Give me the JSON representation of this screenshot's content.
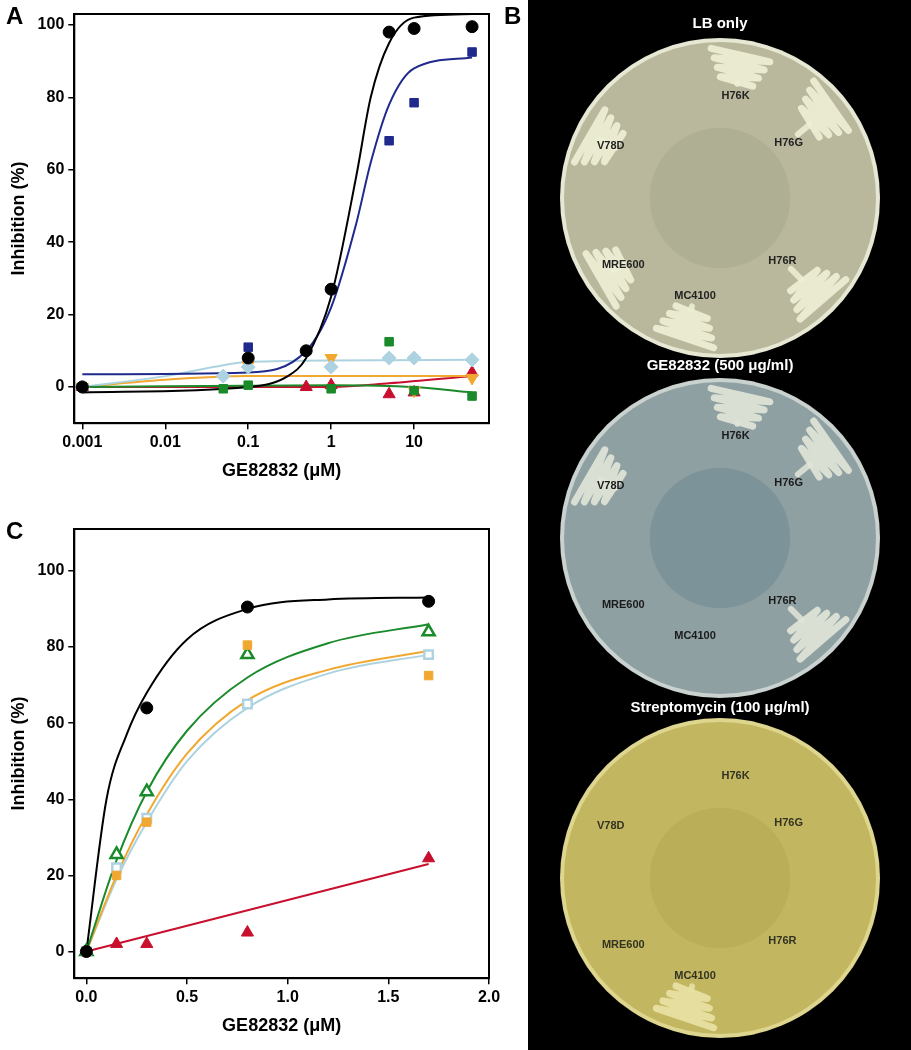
{
  "chart_data": [
    {
      "panel_label": "A",
      "type": "scatter",
      "log": "x",
      "grid": false,
      "x_label": "GE82832 (μM)",
      "y_label": "Inhibition (%)",
      "xlim": [
        0.0008,
        80
      ],
      "xticks": [
        0.001,
        0.01,
        0.1,
        1,
        10
      ],
      "ylim": [
        -10,
        103
      ],
      "yticks": [
        0,
        20,
        40,
        60,
        80,
        100
      ],
      "series": [
        {
          "type": "line",
          "marker": "none",
          "line_style": "solid",
          "color": "#000000",
          "x": [
            0.001,
            0.1,
            0.3,
            0.5,
            1,
            2,
            3,
            5,
            10,
            50
          ],
          "values": [
            -1.5,
            0,
            3,
            8,
            25,
            58,
            80,
            95,
            102,
            103
          ]
        },
        {
          "type": "line",
          "marker": "none",
          "line_style": "solid",
          "color": "#1f2a8c",
          "x": [
            0.001,
            0.1,
            0.5,
            1,
            2,
            3,
            5,
            10,
            50
          ],
          "values": [
            3.5,
            4,
            10,
            22,
            45,
            62,
            78,
            88,
            91
          ]
        },
        {
          "type": "line",
          "marker": "none",
          "line_style": "solid",
          "color": "#1a8a2a",
          "x": [
            0.001,
            1,
            10,
            50
          ],
          "values": [
            0,
            0.5,
            0,
            -1.5
          ]
        },
        {
          "type": "line",
          "marker": "none",
          "line_style": "solid",
          "color": "#aed3e0",
          "x": [
            0.001,
            0.01,
            0.05,
            0.1,
            50
          ],
          "values": [
            0,
            3,
            6,
            7,
            7.5
          ]
        },
        {
          "type": "line",
          "marker": "none",
          "line_style": "solid",
          "color": "#f0a830",
          "x": [
            0.001,
            0.01,
            0.1,
            50
          ],
          "values": [
            0,
            2,
            3,
            3
          ]
        },
        {
          "type": "line",
          "marker": "none",
          "line_style": "solid",
          "color": "#c8102e",
          "x": [
            0.001,
            1,
            5,
            50
          ],
          "values": [
            0,
            0,
            1,
            3
          ]
        },
        {
          "type": "scatter",
          "marker": "circle",
          "color": "#000000",
          "x": [
            0.001,
            0.1,
            0.5,
            1,
            5,
            10,
            50
          ],
          "values": [
            0,
            8,
            10,
            27,
            98,
            99,
            99.5
          ]
        },
        {
          "type": "scatter",
          "marker": "square",
          "color": "#1f2a8c",
          "x": [
            0.001,
            0.1,
            5,
            10,
            50
          ],
          "values": [
            0,
            11,
            68,
            78.5,
            92.5
          ]
        },
        {
          "type": "scatter",
          "marker": "square",
          "color": "#1a8a2a",
          "x": [
            0.001,
            0.05,
            0.1,
            1,
            5,
            10,
            50
          ],
          "values": [
            0,
            -0.5,
            0.5,
            -0.5,
            12.5,
            -1,
            -2.5
          ]
        },
        {
          "type": "scatter",
          "marker": "diamond",
          "color": "#aed3e0",
          "x": [
            0.001,
            0.05,
            0.1,
            1,
            5,
            10,
            50
          ],
          "values": [
            0,
            3,
            5.5,
            5.5,
            8,
            8,
            7.5
          ]
        },
        {
          "type": "scatter",
          "marker": "triangle-down",
          "color": "#f0a830",
          "x": [
            0.001,
            0.1,
            1,
            10,
            50
          ],
          "values": [
            0,
            6,
            8,
            -1,
            2.5
          ]
        },
        {
          "type": "scatter",
          "marker": "triangle",
          "color": "#c8102e",
          "x": [
            0.001,
            0.5,
            1,
            5,
            10,
            50
          ],
          "values": [
            0,
            0,
            0.5,
            -2,
            -1.5,
            4
          ]
        }
      ]
    },
    {
      "panel_label": "C",
      "type": "scatter",
      "grid": false,
      "x_label": "GE82832 (μM)",
      "y_label": "Inhibition (%)",
      "xlim": [
        -0.06,
        2.0
      ],
      "xticks": [
        {
          "value": 0,
          "label": "0.0"
        },
        {
          "value": 0.5,
          "label": "0.5"
        },
        {
          "value": 1,
          "label": "1.0"
        },
        {
          "value": 1.5,
          "label": "1.5"
        },
        {
          "value": 2,
          "label": "2.0"
        }
      ],
      "ylim": [
        -7,
        111
      ],
      "yticks": [
        0,
        20,
        40,
        60,
        80,
        100
      ],
      "series": [
        {
          "type": "line",
          "marker": "none",
          "line_style": "solid",
          "color": "#000000",
          "x": [
            0,
            0.1,
            0.2,
            0.3,
            0.5,
            0.8,
            1.2,
            1.7
          ],
          "values": [
            0,
            40,
            57,
            68,
            82,
            90,
            92.5,
            93
          ]
        },
        {
          "type": "line",
          "marker": "none",
          "line_style": "solid",
          "color": "#1a8a2a",
          "x": [
            0,
            0.15,
            0.3,
            0.5,
            0.8,
            1.2,
            1.7
          ],
          "values": [
            0,
            24,
            42,
            58,
            72,
            81,
            86
          ]
        },
        {
          "type": "line",
          "marker": "none",
          "line_style": "solid",
          "color": "#f0a830",
          "x": [
            0,
            0.15,
            0.3,
            0.5,
            0.8,
            1.2,
            1.7
          ],
          "values": [
            0,
            20,
            36,
            52,
            66,
            74,
            79
          ]
        },
        {
          "type": "line",
          "marker": "none",
          "line_style": "solid",
          "color": "#aed3e0",
          "x": [
            0,
            0.15,
            0.3,
            0.5,
            0.8,
            1.2,
            1.7
          ],
          "values": [
            0,
            19,
            34,
            50,
            64,
            73,
            78
          ]
        },
        {
          "type": "line",
          "marker": "none",
          "line_style": "solid",
          "color": "#c8102e",
          "x": [
            0,
            1.7
          ],
          "values": [
            0,
            23
          ]
        },
        {
          "type": "scatter",
          "marker": "circle",
          "color": "#000000",
          "x": [
            0,
            0.3,
            0.8,
            1.7
          ],
          "values": [
            0,
            64,
            90.5,
            92
          ]
        },
        {
          "type": "scatter",
          "marker": "square",
          "color": "#f0a830",
          "x": [
            0,
            0.15,
            0.3,
            0.8,
            1.7
          ],
          "values": [
            0,
            20,
            34,
            80.5,
            72.5
          ]
        },
        {
          "type": "scatter",
          "marker": "square-open",
          "color": "#aed3e0",
          "x": [
            0,
            0.15,
            0.3,
            0.8,
            1.7
          ],
          "values": [
            0,
            22,
            35,
            65,
            78
          ]
        },
        {
          "type": "scatter",
          "marker": "triangle-open",
          "color": "#1a8a2a",
          "x": [
            0,
            0.15,
            0.3,
            0.8,
            1.7
          ],
          "values": [
            0,
            25.5,
            42,
            78,
            84
          ]
        },
        {
          "type": "scatter",
          "marker": "triangle",
          "color": "#c8102e",
          "x": [
            0,
            0.15,
            0.3,
            0.8,
            1.7
          ],
          "values": [
            0,
            2,
            2,
            5,
            24.5
          ]
        }
      ]
    }
  ],
  "panel_b": {
    "panel_label": "B",
    "strains": [
      "H76K",
      "H76G",
      "H76R",
      "MC4100",
      "MRE600",
      "V78D"
    ],
    "plates": [
      {
        "title": "LB only",
        "growth": [
          true,
          true,
          true,
          true,
          true,
          true
        ]
      },
      {
        "title": "GE82832 (500 μg/ml)",
        "growth": [
          true,
          true,
          true,
          false,
          false,
          true
        ]
      },
      {
        "title": "Streptomycin (100 μg/ml)",
        "growth": [
          false,
          false,
          false,
          true,
          false,
          false
        ]
      }
    ]
  }
}
